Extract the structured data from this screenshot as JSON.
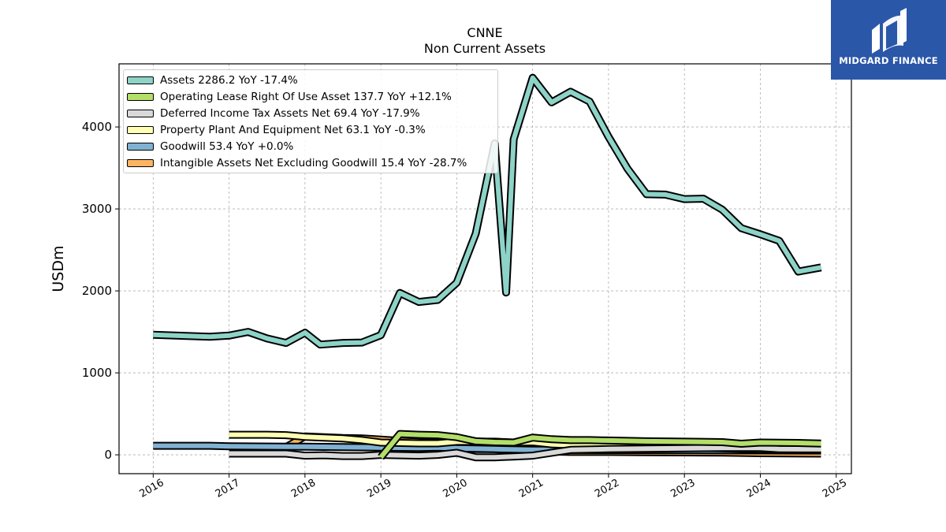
{
  "brand": {
    "name": "MIDGARD FINANCE",
    "color": "#2b57a8"
  },
  "chart_data": {
    "type": "line",
    "title": "CNNE",
    "subtitle": "Non Current  Assets",
    "xlabel": "",
    "ylabel": "USDm",
    "xlim": [
      2015.55,
      2025.2
    ],
    "ylim": [
      -230,
      4770
    ],
    "x_ticks": [
      "2016",
      "2017",
      "2018",
      "2019",
      "2020",
      "2021",
      "2022",
      "2023",
      "2024",
      "2025"
    ],
    "y_ticks": [
      "0",
      "1000",
      "2000",
      "3000",
      "4000"
    ],
    "grid": true,
    "legend_position": "upper left",
    "series": [
      {
        "name": "Assets  2286.2 YoY -17.4%",
        "color": "#8dd3c7",
        "x": [
          2016.0,
          2016.75,
          2017.0,
          2017.25,
          2017.5,
          2017.75,
          2018.0,
          2018.2,
          2018.5,
          2018.75,
          2019.0,
          2019.25,
          2019.5,
          2019.75,
          2020.0,
          2020.25,
          2020.5,
          2020.65,
          2020.75,
          2021.0,
          2021.25,
          2021.5,
          2021.75,
          2022.0,
          2022.25,
          2022.5,
          2022.75,
          2023.0,
          2023.25,
          2023.5,
          2023.75,
          2024.0,
          2024.25,
          2024.5,
          2024.8
        ],
        "values": [
          1465,
          1440,
          1455,
          1500,
          1420,
          1365,
          1490,
          1345,
          1365,
          1370,
          1460,
          1975,
          1865,
          1890,
          2100,
          2700,
          3800,
          1980,
          3850,
          4600,
          4300,
          4430,
          4310,
          3880,
          3490,
          3180,
          3175,
          3120,
          3125,
          2990,
          2765,
          2690,
          2610,
          2235,
          2286
        ]
      },
      {
        "name": "Operating Lease Right Of Use Asset  137.7 YoY +12.1%",
        "color": "#b3de69",
        "x": [
          2019.0,
          2019.25,
          2019.5,
          2019.75,
          2020.0,
          2020.25,
          2020.5,
          2020.75,
          2021.0,
          2021.25,
          2021.5,
          2021.75,
          2022.0,
          2022.5,
          2023.0,
          2023.5,
          2023.75,
          2024.0,
          2024.5,
          2024.8
        ],
        "values": [
          -30,
          255,
          245,
          240,
          215,
          165,
          155,
          150,
          210,
          190,
          180,
          180,
          175,
          165,
          160,
          155,
          135,
          150,
          145,
          138
        ]
      },
      {
        "name": "Deferred Income Tax Assets Net  69.4 YoY -17.9%",
        "color": "#d9d9d9",
        "x": [
          2017.0,
          2017.75,
          2018.0,
          2018.25,
          2018.5,
          2018.75,
          2019.0,
          2019.25,
          2019.5,
          2019.75,
          2020.0,
          2020.25,
          2020.5,
          2020.75,
          2021.0,
          2021.5,
          2022.0,
          2022.5,
          2023.0,
          2023.5,
          2024.0,
          2024.25,
          2024.8
        ],
        "values": [
          15,
          15,
          -10,
          -5,
          -15,
          -15,
          0,
          -5,
          -10,
          0,
          25,
          -30,
          -30,
          -20,
          -10,
          60,
          70,
          75,
          80,
          85,
          85,
          70,
          69
        ]
      },
      {
        "name": "Property Plant And Equipment Net  63.1 YoY -0.3%",
        "color": "#ffffb3",
        "x": [
          2017.0,
          2017.5,
          2017.75,
          2018.0,
          2018.5,
          2018.75,
          2019.0,
          2019.5,
          2019.75,
          2020.0,
          2020.5,
          2020.75,
          2021.0,
          2021.25,
          2021.5,
          2022.0,
          2022.5,
          2023.0,
          2023.5,
          2024.0,
          2024.8
        ],
        "values": [
          245,
          245,
          240,
          220,
          200,
          180,
          150,
          140,
          140,
          160,
          160,
          150,
          155,
          130,
          120,
          110,
          100,
          90,
          80,
          65,
          63
        ]
      },
      {
        "name": "Goodwill  53.4 YoY +0.0%",
        "color": "#80b1d3",
        "x": [
          2016.0,
          2016.75,
          2017.0,
          2017.75,
          2018.0,
          2018.5,
          2019.0,
          2019.5,
          2019.75,
          2020.0,
          2020.5,
          2021.0,
          2022.0,
          2023.0,
          2024.0,
          2024.8
        ],
        "values": [
          110,
          110,
          105,
          100,
          100,
          95,
          90,
          85,
          90,
          80,
          70,
          60,
          58,
          57,
          54,
          53
        ]
      },
      {
        "name": "Intangible Assets Net Excluding Goodwill  15.4 YoY -28.7%",
        "color": "#fdb462",
        "x": [
          2017.0,
          2017.75,
          2018.0,
          2018.25,
          2018.5,
          2018.75,
          2019.0,
          2019.25,
          2019.5,
          2019.75,
          2020.0,
          2020.25,
          2020.5,
          2020.75,
          2021.0,
          2021.25,
          2021.5,
          2022.0,
          2022.5,
          2023.0,
          2023.5,
          2024.0,
          2024.8
        ],
        "values": [
          100,
          95,
          225,
          215,
          205,
          200,
          185,
          170,
          160,
          150,
          80,
          70,
          70,
          70,
          80,
          40,
          35,
          35,
          32,
          30,
          28,
          20,
          15
        ]
      }
    ]
  }
}
